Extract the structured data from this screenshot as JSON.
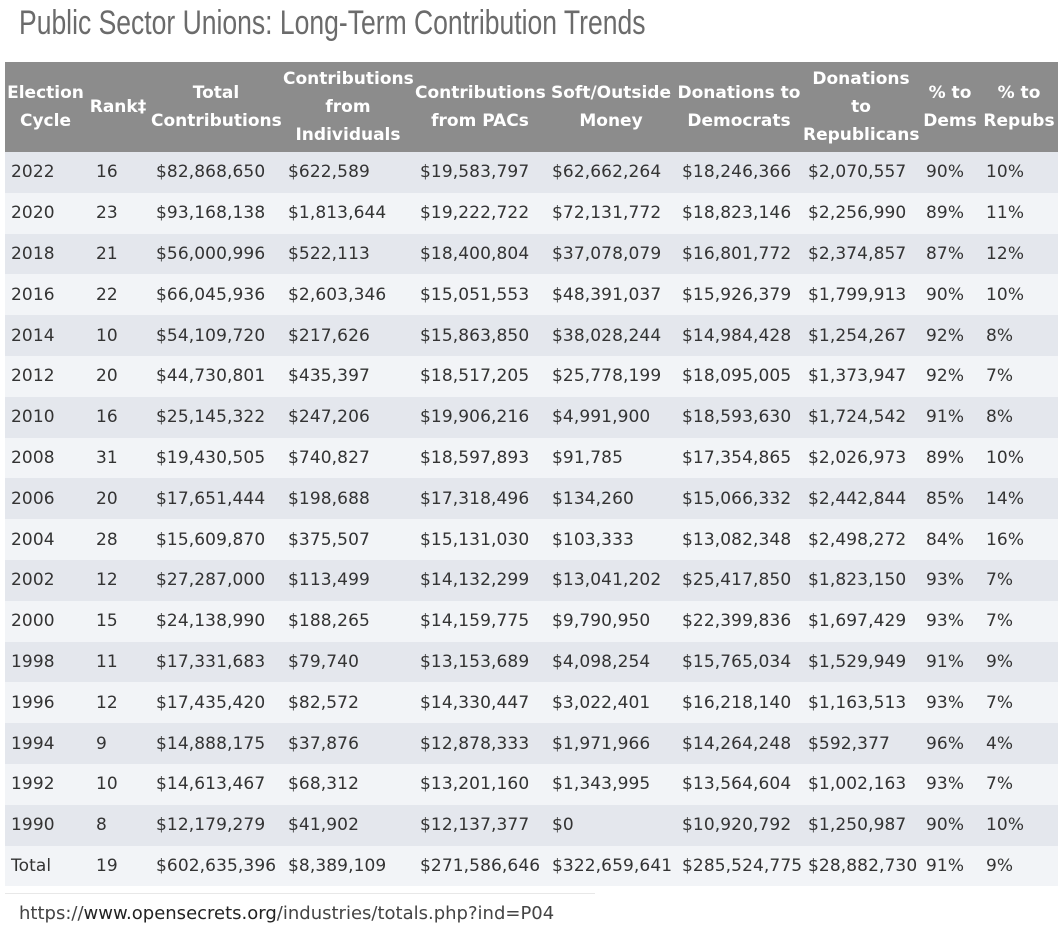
{
  "title": "Public Sector Unions: Long-Term Contribution Trends",
  "table": {
    "headers": [
      "Election Cycle",
      "Rank‡",
      "Total Contributions",
      "Contributions from Individuals",
      "Contributions from PACs",
      "Soft/Outside Money",
      "Donations to Democrats",
      "Donations to Republicans",
      "% to Dems",
      "% to Repubs"
    ],
    "rows": [
      [
        "2022",
        "16",
        "$82,868,650",
        "$622,589",
        "$19,583,797",
        "$62,662,264",
        "$18,246,366",
        "$2,070,557",
        "90%",
        "10%"
      ],
      [
        "2020",
        "23",
        "$93,168,138",
        "$1,813,644",
        "$19,222,722",
        "$72,131,772",
        "$18,823,146",
        "$2,256,990",
        "89%",
        "11%"
      ],
      [
        "2018",
        "21",
        "$56,000,996",
        "$522,113",
        "$18,400,804",
        "$37,078,079",
        "$16,801,772",
        "$2,374,857",
        "87%",
        "12%"
      ],
      [
        "2016",
        "22",
        "$66,045,936",
        "$2,603,346",
        "$15,051,553",
        "$48,391,037",
        "$15,926,379",
        "$1,799,913",
        "90%",
        "10%"
      ],
      [
        "2014",
        "10",
        "$54,109,720",
        "$217,626",
        "$15,863,850",
        "$38,028,244",
        "$14,984,428",
        "$1,254,267",
        "92%",
        "8%"
      ],
      [
        "2012",
        "20",
        "$44,730,801",
        "$435,397",
        "$18,517,205",
        "$25,778,199",
        "$18,095,005",
        "$1,373,947",
        "92%",
        "7%"
      ],
      [
        "2010",
        "16",
        "$25,145,322",
        "$247,206",
        "$19,906,216",
        "$4,991,900",
        "$18,593,630",
        "$1,724,542",
        "91%",
        "8%"
      ],
      [
        "2008",
        "31",
        "$19,430,505",
        "$740,827",
        "$18,597,893",
        "$91,785",
        "$17,354,865",
        "$2,026,973",
        "89%",
        "10%"
      ],
      [
        "2006",
        "20",
        "$17,651,444",
        "$198,688",
        "$17,318,496",
        "$134,260",
        "$15,066,332",
        "$2,442,844",
        "85%",
        "14%"
      ],
      [
        "2004",
        "28",
        "$15,609,870",
        "$375,507",
        "$15,131,030",
        "$103,333",
        "$13,082,348",
        "$2,498,272",
        "84%",
        "16%"
      ],
      [
        "2002",
        "12",
        "$27,287,000",
        "$113,499",
        "$14,132,299",
        "$13,041,202",
        "$25,417,850",
        "$1,823,150",
        "93%",
        "7%"
      ],
      [
        "2000",
        "15",
        "$24,138,990",
        "$188,265",
        "$14,159,775",
        "$9,790,950",
        "$22,399,836",
        "$1,697,429",
        "93%",
        "7%"
      ],
      [
        "1998",
        "11",
        "$17,331,683",
        "$79,740",
        "$13,153,689",
        "$4,098,254",
        "$15,765,034",
        "$1,529,949",
        "91%",
        "9%"
      ],
      [
        "1996",
        "12",
        "$17,435,420",
        "$82,572",
        "$14,330,447",
        "$3,022,401",
        "$16,218,140",
        "$1,163,513",
        "93%",
        "7%"
      ],
      [
        "1994",
        "9",
        "$14,888,175",
        "$37,876",
        "$12,878,333",
        "$1,971,966",
        "$14,264,248",
        "$592,377",
        "96%",
        "4%"
      ],
      [
        "1992",
        "10",
        "$14,613,467",
        "$68,312",
        "$13,201,160",
        "$1,343,995",
        "$13,564,604",
        "$1,002,163",
        "93%",
        "7%"
      ],
      [
        "1990",
        "8",
        "$12,179,279",
        "$41,902",
        "$12,137,377",
        "$0",
        "$10,920,792",
        "$1,250,987",
        "90%",
        "10%"
      ],
      [
        "Total",
        "19",
        "$602,635,396",
        "$8,389,109",
        "$271,586,646",
        "$322,659,641",
        "$285,524,775",
        "$28,882,730",
        "91%",
        "9%"
      ]
    ]
  },
  "source": {
    "prefix": "https://",
    "domain": "www.opensecrets.org",
    "path": "/industries/totals.php?ind=P04"
  },
  "colors": {
    "header_bg": "#8c8c8c",
    "row_stripe_dark": "#e4e7ed",
    "row_stripe_light": "#f2f4f7",
    "title_text": "#6b6b6b"
  }
}
